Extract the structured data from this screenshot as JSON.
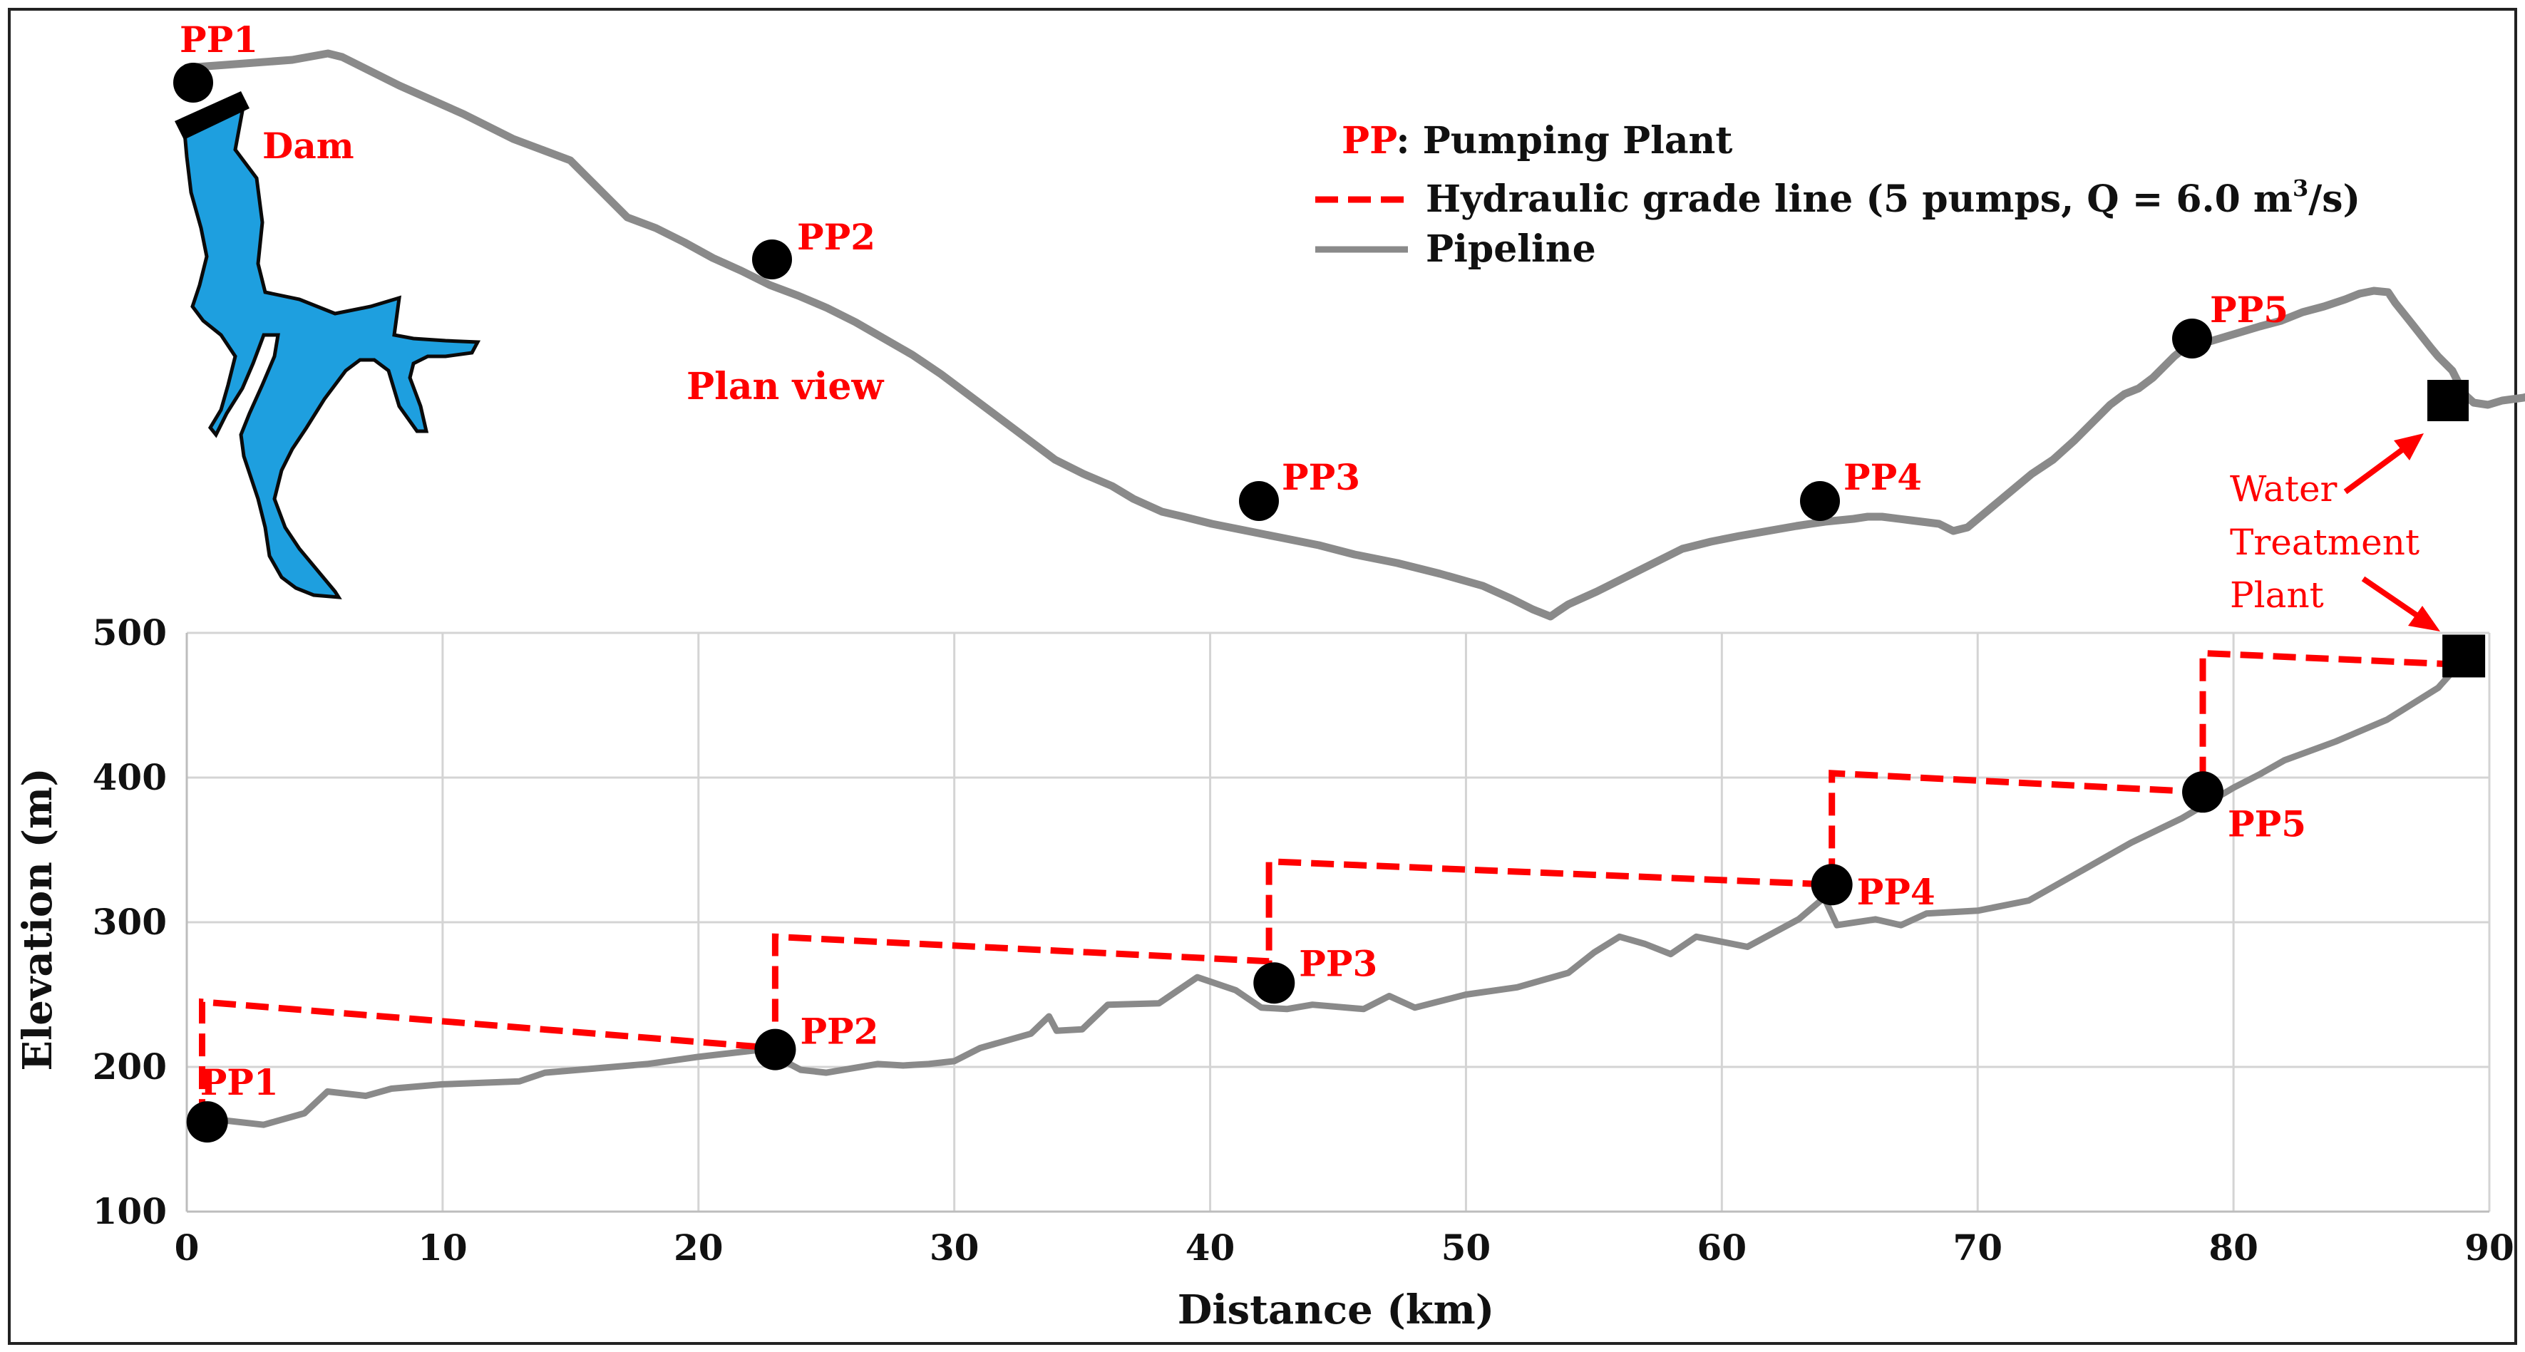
{
  "legend": {
    "pp_abbrev": "PP",
    "pp_text": ": Pumping Plant",
    "hgl_text_pre": "Hydraulic grade line (5 pumps, Q = 6.0 m",
    "hgl_sup": "3",
    "hgl_text_post": "/s)",
    "pipeline_text": "Pipeline"
  },
  "plan_view": {
    "label": "Plan view",
    "dam_label": "Dam",
    "plants": [
      "PP1",
      "PP2",
      "PP3",
      "PP4",
      "PP5"
    ],
    "wtp_label": [
      "Water",
      "Treatment",
      "Plant"
    ]
  },
  "colors": {
    "pipeline": "#8a8a8a",
    "hgl": "#ff0000",
    "labels": "#ff0000",
    "reservoir": "#1e9fdf",
    "markers": "#000000"
  },
  "chart_data": {
    "type": "line",
    "xlabel": "Distance (km)",
    "ylabel": "Elevation (m)",
    "xlim": [
      0,
      90
    ],
    "ylim": [
      100,
      500
    ],
    "xticks": [
      0,
      10,
      20,
      30,
      40,
      50,
      60,
      70,
      80,
      90
    ],
    "yticks": [
      100,
      200,
      300,
      400,
      500
    ],
    "grid": true,
    "series": [
      {
        "name": "Pipeline",
        "x": [
          0.3,
          1.5,
          3,
          4.6,
          5.5,
          7,
          8,
          10,
          13,
          14,
          16,
          18,
          20,
          22.5,
          24,
          25,
          27,
          28,
          29,
          30,
          31,
          33,
          33.7,
          34,
          35,
          36,
          38,
          39.5,
          41,
          42,
          43,
          44,
          46,
          47,
          48,
          50,
          52,
          54,
          55,
          56,
          57,
          58,
          59,
          61,
          63,
          64,
          64.5,
          66,
          67,
          68,
          70,
          72,
          74,
          76,
          78,
          80,
          81,
          82,
          84,
          86,
          88,
          89
        ],
        "y": [
          165,
          163,
          160,
          168,
          183,
          180,
          185,
          188,
          190,
          196,
          199,
          202,
          207,
          212,
          198,
          196,
          202,
          201,
          202,
          204,
          213,
          223,
          235,
          225,
          226,
          243,
          244,
          262,
          253,
          241,
          240,
          243,
          240,
          249,
          241,
          250,
          255,
          265,
          279,
          290,
          285,
          278,
          290,
          283,
          302,
          317,
          298,
          302,
          298,
          306,
          308,
          315,
          335,
          355,
          372,
          393,
          402,
          412,
          425,
          440,
          462,
          482
        ]
      },
      {
        "name": "Hydraulic grade line (5 pumps, Q = 6.0 m³/s)",
        "x": [
          0.6,
          0.6,
          23,
          23,
          42.3,
          42.3,
          64.3,
          64.3,
          78.8,
          78.8,
          89
        ],
        "y": [
          162,
          245,
          213,
          290,
          273,
          342,
          326,
          403,
          390,
          486,
          478
        ]
      }
    ],
    "pumping_plants": [
      {
        "name": "PP1",
        "x": 0.8,
        "y": 162
      },
      {
        "name": "PP2",
        "x": 23,
        "y": 212
      },
      {
        "name": "PP3",
        "x": 42.5,
        "y": 258
      },
      {
        "name": "PP4",
        "x": 64.3,
        "y": 326
      },
      {
        "name": "PP5",
        "x": 78.8,
        "y": 390
      }
    ],
    "endpoint": {
      "x": 89,
      "y": 484
    }
  }
}
